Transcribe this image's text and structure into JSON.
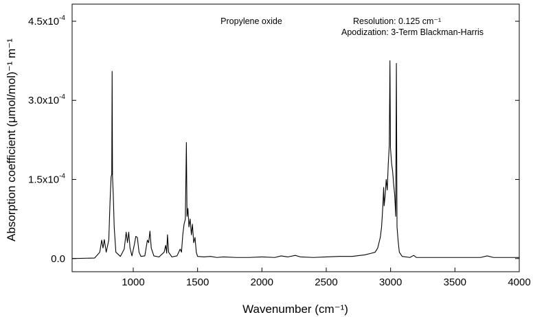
{
  "chart_data": {
    "type": "line",
    "title": "Propylene oxide",
    "xlabel": "Wavenumber (cm⁻¹)",
    "ylabel": "Absorption coefficient  (μmol/mol)⁻¹ m⁻¹",
    "xlim": [
      525,
      4000
    ],
    "ylim": [
      -2.5e-05,
      0.0004825
    ],
    "grid": false,
    "legend": "none",
    "x_ticks": [
      {
        "value": 1000,
        "label": "1000"
      },
      {
        "value": 1500,
        "label": "1500"
      },
      {
        "value": 2000,
        "label": "2000"
      },
      {
        "value": 2500,
        "label": "2500"
      },
      {
        "value": 3000,
        "label": "3000"
      },
      {
        "value": 3500,
        "label": "3500"
      },
      {
        "value": 4000,
        "label": "4000"
      }
    ],
    "y_ticks": [
      {
        "value": 0.0,
        "label": "0.0"
      },
      {
        "value": 0.00015,
        "label": "1.5x10-4"
      },
      {
        "value": 0.0003,
        "label": "3.0x10-4"
      },
      {
        "value": 0.00045,
        "label": "4.5x10-4"
      }
    ],
    "annotations": {
      "resolution": "Resolution:  0.125 cm⁻¹",
      "apodization": "Apodization: 3-Term Blackman-Harris"
    },
    "series": [
      {
        "color": "#000000",
        "points": [
          [
            525,
            0.0
          ],
          [
            700,
            1e-06
          ],
          [
            740,
            1.2e-05
          ],
          [
            755,
            3.5e-05
          ],
          [
            765,
            2e-05
          ],
          [
            775,
            3.6e-05
          ],
          [
            790,
            1.2e-05
          ],
          [
            810,
            3.5e-05
          ],
          [
            820,
            0.00011
          ],
          [
            828,
            0.000155
          ],
          [
            833,
            0.00016
          ],
          [
            836,
            0.000355
          ],
          [
            839,
            0.000155
          ],
          [
            845,
            0.00012
          ],
          [
            852,
            6e-05
          ],
          [
            865,
            1.2e-05
          ],
          [
            900,
            4e-06
          ],
          [
            930,
            1.8e-05
          ],
          [
            945,
            5e-05
          ],
          [
            955,
            3e-05
          ],
          [
            965,
            5e-05
          ],
          [
            975,
            2e-05
          ],
          [
            990,
            5e-06
          ],
          [
            1010,
            2.8e-05
          ],
          [
            1020,
            4.2e-05
          ],
          [
            1032,
            4e-05
          ],
          [
            1045,
            1.2e-05
          ],
          [
            1060,
            4e-06
          ],
          [
            1090,
            5e-06
          ],
          [
            1110,
            3.5e-05
          ],
          [
            1120,
            3e-05
          ],
          [
            1130,
            5.2e-05
          ],
          [
            1140,
            2e-05
          ],
          [
            1160,
            5e-06
          ],
          [
            1200,
            3e-06
          ],
          [
            1240,
            1.2e-05
          ],
          [
            1252,
            2.5e-05
          ],
          [
            1260,
            1e-05
          ],
          [
            1266,
            4.5e-05
          ],
          [
            1275,
            1.2e-05
          ],
          [
            1300,
            3e-06
          ],
          [
            1340,
            5e-06
          ],
          [
            1365,
            1.8e-05
          ],
          [
            1375,
            1.2e-05
          ],
          [
            1385,
            4.5e-05
          ],
          [
            1395,
            6.5e-05
          ],
          [
            1405,
            7.5e-05
          ],
          [
            1413,
            0.00022
          ],
          [
            1418,
            8e-05
          ],
          [
            1425,
            9.5e-05
          ],
          [
            1433,
            6e-05
          ],
          [
            1442,
            7.5e-05
          ],
          [
            1452,
            4.5e-05
          ],
          [
            1460,
            6.5e-05
          ],
          [
            1470,
            3e-05
          ],
          [
            1480,
            4e-05
          ],
          [
            1490,
            1.2e-05
          ],
          [
            1500,
            4e-06
          ],
          [
            1550,
            3e-06
          ],
          [
            1600,
            4e-06
          ],
          [
            1650,
            2e-06
          ],
          [
            1700,
            3e-06
          ],
          [
            1800,
            2e-06
          ],
          [
            1900,
            2e-06
          ],
          [
            2000,
            3e-06
          ],
          [
            2100,
            2e-06
          ],
          [
            2150,
            5e-06
          ],
          [
            2200,
            3e-06
          ],
          [
            2260,
            6e-06
          ],
          [
            2300,
            3e-06
          ],
          [
            2400,
            2e-06
          ],
          [
            2500,
            3e-06
          ],
          [
            2600,
            4e-06
          ],
          [
            2700,
            4e-06
          ],
          [
            2800,
            7e-06
          ],
          [
            2850,
            1e-05
          ],
          [
            2880,
            1.2e-05
          ],
          [
            2900,
            2e-05
          ],
          [
            2920,
            4e-05
          ],
          [
            2930,
            6e-05
          ],
          [
            2940,
            0.0001
          ],
          [
            2946,
            0.000135
          ],
          [
            2950,
            0.0001
          ],
          [
            2958,
            0.00012
          ],
          [
            2966,
            0.00015
          ],
          [
            2974,
            0.00013
          ],
          [
            2982,
            0.00018
          ],
          [
            2990,
            0.000215
          ],
          [
            2995,
            0.000375
          ],
          [
            2999,
            0.00021
          ],
          [
            3008,
            0.00018
          ],
          [
            3016,
            0.000165
          ],
          [
            3024,
            0.00014
          ],
          [
            3032,
            0.00012
          ],
          [
            3040,
            8e-05
          ],
          [
            3045,
            0.00037
          ],
          [
            3050,
            6e-05
          ],
          [
            3058,
            3.5e-05
          ],
          [
            3068,
            1.2e-05
          ],
          [
            3090,
            4e-06
          ],
          [
            3150,
            2e-06
          ],
          [
            3180,
            6e-06
          ],
          [
            3200,
            2e-06
          ],
          [
            3300,
            2e-06
          ],
          [
            3400,
            2e-06
          ],
          [
            3500,
            2e-06
          ],
          [
            3600,
            2e-06
          ],
          [
            3700,
            2e-06
          ],
          [
            3750,
            5e-06
          ],
          [
            3800,
            2e-06
          ],
          [
            3900,
            2e-06
          ],
          [
            4000,
            2e-06
          ]
        ]
      }
    ]
  }
}
